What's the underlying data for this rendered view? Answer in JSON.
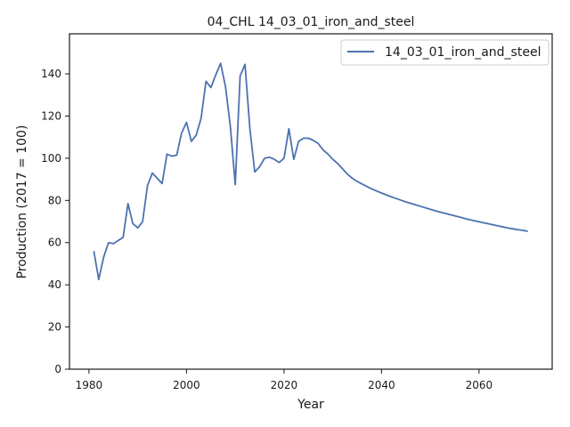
{
  "chart_data": {
    "type": "line",
    "title": "04_CHL 14_03_01_iron_and_steel",
    "xlabel": "Year",
    "ylabel": "Production (2017 = 100)",
    "xlim": [
      1976,
      2075
    ],
    "ylim": [
      0,
      159
    ],
    "xticks": [
      1980,
      2000,
      2020,
      2040,
      2060
    ],
    "yticks": [
      0,
      20,
      40,
      60,
      80,
      100,
      120,
      140
    ],
    "grid": false,
    "legend_position": "top-right",
    "series": [
      {
        "name": "14_03_01_iron_and_steel",
        "color": "#4c72b0",
        "x": [
          1981,
          1982,
          1983,
          1984,
          1985,
          1986,
          1987,
          1988,
          1989,
          1990,
          1991,
          1992,
          1993,
          1994,
          1995,
          1996,
          1997,
          1998,
          1999,
          2000,
          2001,
          2002,
          2003,
          2004,
          2005,
          2006,
          2007,
          2008,
          2009,
          2010,
          2011,
          2012,
          2013,
          2014,
          2015,
          2016,
          2017,
          2018,
          2019,
          2020,
          2021,
          2022,
          2023,
          2024,
          2025,
          2026,
          2027,
          2028,
          2029,
          2030,
          2031,
          2032,
          2033,
          2034,
          2035,
          2036,
          2037,
          2038,
          2039,
          2040,
          2041,
          2042,
          2043,
          2044,
          2045,
          2046,
          2047,
          2048,
          2049,
          2050,
          2051,
          2052,
          2053,
          2054,
          2055,
          2056,
          2057,
          2058,
          2059,
          2060,
          2061,
          2062,
          2063,
          2064,
          2065,
          2066,
          2067,
          2068,
          2069,
          2070
        ],
        "values": [
          56,
          42.5,
          53,
          60,
          59.5,
          61,
          62.5,
          78.5,
          69,
          67,
          70,
          87,
          93,
          90.5,
          88,
          102,
          101,
          101.5,
          112,
          117,
          108,
          111,
          119,
          136.5,
          133.5,
          139.5,
          145,
          134,
          115,
          87.5,
          139,
          144.5,
          114,
          93.5,
          96,
          100,
          100.5,
          99.5,
          98,
          100,
          114,
          99.5,
          108,
          109.5,
          109.5,
          108.5,
          107,
          104,
          102,
          99.5,
          97.5,
          95,
          92.5,
          90.5,
          89,
          87.8,
          86.6,
          85.5,
          84.5,
          83.5,
          82.6,
          81.7,
          80.9,
          80.1,
          79.3,
          78.6,
          77.9,
          77.2,
          76.5,
          75.8,
          75.1,
          74.5,
          73.9,
          73.3,
          72.7,
          72.1,
          71.5,
          70.9,
          70.4,
          69.9,
          69.4,
          68.9,
          68.4,
          67.9,
          67.4,
          66.9,
          66.5,
          66.1,
          65.8,
          65.4
        ]
      }
    ]
  }
}
